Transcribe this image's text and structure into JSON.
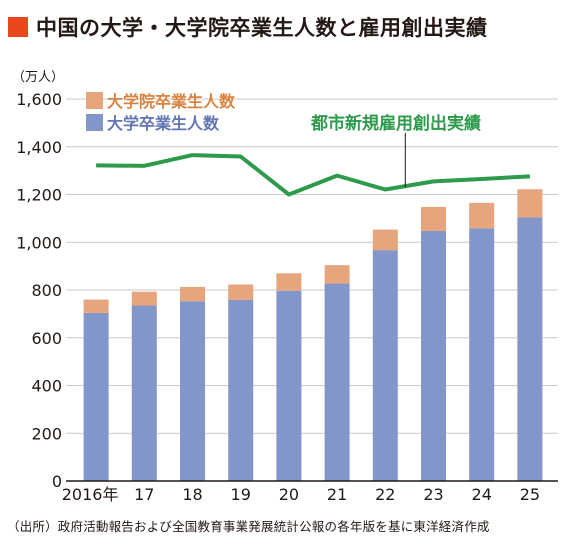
{
  "title": "中国の大学・大学院卒業生人数と雇用創出実績",
  "colors": {
    "title_mark": "#e8481c",
    "grad": "#e6a57c",
    "undergrad": "#8396c9",
    "line": "#2d9a4c",
    "grid": "#c9c9c9",
    "axis": "#231815"
  },
  "source": "（出所）政府活動報告および全国教育事業発展統計公報の各年版を基に東洋経済作成",
  "chart_data": {
    "type": "bar",
    "stacked": true,
    "unit": "（万人）",
    "categories": [
      "2016年",
      "17",
      "18",
      "19",
      "20",
      "21",
      "22",
      "23",
      "24",
      "25"
    ],
    "ylim": [
      0,
      1600
    ],
    "yticks": [
      "0",
      "200",
      "400",
      "600",
      "800",
      "1,000",
      "1,200",
      "1,400",
      "1,600"
    ],
    "grid": "horizontal",
    "legend_position": "top-left",
    "series": [
      {
        "name": "大学卒業生人数",
        "values": [
          704,
          735,
          753,
          759,
          797,
          827,
          967,
          1047,
          1058,
          1104
        ],
        "color_key": "undergrad"
      },
      {
        "name": "大学院卒業生人数",
        "values": [
          56,
          58,
          60,
          64,
          73,
          77,
          86,
          101,
          107,
          118
        ],
        "color_key": "grad"
      }
    ],
    "line_series": {
      "name": "都市新規雇用創出実績",
      "values": [
        1322,
        1320,
        1365,
        1359,
        1200,
        1279,
        1221,
        1255,
        1265,
        1276
      ]
    }
  }
}
